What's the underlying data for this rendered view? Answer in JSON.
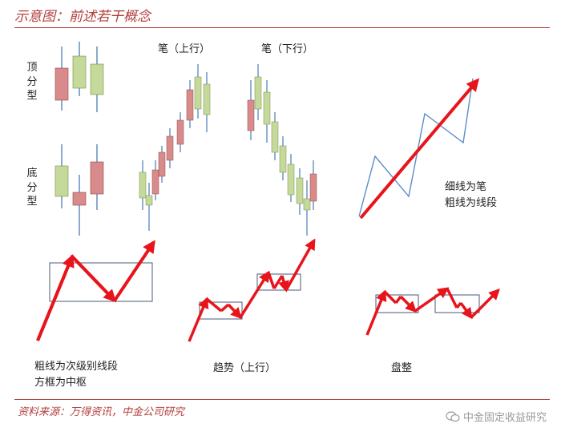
{
  "title": "示意图：前述若干概念",
  "labels": {
    "top_fractal": "顶分型",
    "bottom_fractal": "底分型",
    "stroke_up": "笔（上行）",
    "stroke_down": "笔（下行）",
    "thin_line": "细线为笔",
    "thick_line": "粗线为线段",
    "thick_sub": "粗线为次级别线段",
    "box_pivot": "方框为中枢",
    "trend_up": "趋势（上行）",
    "consolidation": "盘整"
  },
  "source": "资料来源：万得资讯，中金公司研究",
  "watermark": "中金固定收益研究",
  "colors": {
    "accent": "#b0413e",
    "red_candle": "#d98a8a",
    "green_candle": "#c5d99a",
    "wick": "#3a6fb0",
    "arrow": "#e8141b",
    "thin_line": "#5b8fc7",
    "box": "#4a5a7a"
  },
  "icons": {
    "watermark_icon": "wechat-icon"
  }
}
